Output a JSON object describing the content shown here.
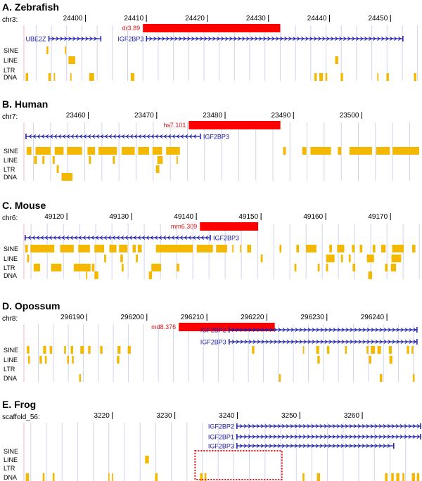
{
  "colors": {
    "element": "#ff0000",
    "element_label": "#e0161b",
    "gene": "#1a1aa8",
    "repeat": "#f5b800",
    "grid": "#d0d4ee",
    "scale_start": "#f2b8c6",
    "highlight": "#e0161b"
  },
  "track_labels": [
    "SINE",
    "LINE",
    "LTR",
    "DNA"
  ],
  "panels": [
    {
      "title": "A.  Zebrafish",
      "chrom": "chr3:",
      "ticks": [
        "24400",
        "24410",
        "24420",
        "24430",
        "24440",
        "24450"
      ],
      "tick_values": [
        24400,
        24410,
        24420,
        24430,
        24440,
        24450
      ],
      "view": [
        24390.5,
        24455.5
      ],
      "element": {
        "label": "dr3.89",
        "start": 24410,
        "end": 24432.5
      },
      "genes": [
        {
          "label": "UBE2Z",
          "start": 24394.6,
          "end": 24403.1,
          "strand": "+",
          "label_side": "left",
          "row": 0
        },
        {
          "label": "IGF2BP3",
          "start": 24410.6,
          "end": 24452.6,
          "strand": "+",
          "label_side": "left",
          "row": 0
        }
      ],
      "repeats": {
        "SINE": [
          [
            24394.2,
            24394.5
          ],
          [
            24397.2,
            24397.4
          ]
        ],
        "LINE": [
          [
            24397.8,
            24398.9
          ],
          [
            24441.5,
            24442.0
          ]
        ],
        "LTR": [],
        "DNA": [
          [
            24390.8,
            24391.2
          ],
          [
            24394.5,
            24394.9
          ],
          [
            24395.4,
            24395.6
          ],
          [
            24398.1,
            24398.3
          ],
          [
            24401.2,
            24402.0
          ],
          [
            24408.0,
            24408.6
          ],
          [
            24438.1,
            24438.5
          ],
          [
            24438.9,
            24439.5
          ],
          [
            24439.9,
            24440.2
          ],
          [
            24442.4,
            24442.8
          ],
          [
            24448.4,
            24448.6
          ],
          [
            24449.9,
            24450.3
          ],
          [
            24454.4,
            24454.8
          ]
        ]
      }
    },
    {
      "title": "B.  Human",
      "chrom": "chr7:",
      "ticks": [
        "23460",
        "23470",
        "23480",
        "23490",
        "23500"
      ],
      "tick_values": [
        23460,
        23470,
        23480,
        23490,
        23500
      ],
      "view": [
        23451.1,
        23509.1
      ],
      "element": {
        "label": "hs7.101",
        "start": 23475.2,
        "end": 23488.6
      },
      "genes": [
        {
          "label": "IGF2BP3",
          "start": 23451.4,
          "end": 23476.9,
          "strand": "-",
          "label_side": "right",
          "row": 0
        }
      ],
      "repeats": {
        "SINE": [
          [
            23451.5,
            23452.2
          ],
          [
            23452.8,
            23455.0
          ],
          [
            23455.6,
            23456.9
          ],
          [
            23457.4,
            23459.6
          ],
          [
            23460.4,
            23461.5
          ],
          [
            23462.0,
            23464.7
          ],
          [
            23465.4,
            23467.3
          ],
          [
            23467.8,
            23469.4
          ],
          [
            23469.9,
            23471.3
          ],
          [
            23471.9,
            23473.9
          ],
          [
            23489.0,
            23489.4
          ],
          [
            23491.8,
            23492.4
          ],
          [
            23493.0,
            23496.0
          ],
          [
            23497.0,
            23497.5
          ],
          [
            23498.7,
            23502.0
          ],
          [
            23502.6,
            23504.6
          ],
          [
            23505.0,
            23508.9
          ]
        ],
        "LINE": [
          [
            23452.6,
            23453.0
          ],
          [
            23453.8,
            23454.1
          ],
          [
            23455.3,
            23455.6
          ],
          [
            23460.6,
            23460.9
          ],
          [
            23464.1,
            23464.4
          ],
          [
            23470.6,
            23471.4
          ],
          [
            23473.4,
            23473.6
          ]
        ],
        "LTR": [
          [
            23455.9,
            23456.2
          ],
          [
            23470.4,
            23470.9
          ]
        ],
        "DNA": [
          [
            23456.6,
            23458.2
          ]
        ]
      }
    },
    {
      "title": "C.  Mouse",
      "chrom": "chr6:",
      "ticks": [
        "49120",
        "49130",
        "49140",
        "49150",
        "49160",
        "49170"
      ],
      "tick_values": [
        49120,
        49130,
        49140,
        49150,
        49160,
        49170
      ],
      "view": [
        49113.9,
        49175.2
      ],
      "element": {
        "label": "mm6.309",
        "start": 49141.1,
        "end": 49150.1
      },
      "genes": [
        {
          "label": "IGF2BP3",
          "start": 49114.1,
          "end": 49142.7,
          "strand": "-",
          "label_side": "right",
          "row": 0
        }
      ],
      "repeats": {
        "SINE": [
          [
            49114.1,
            49114.5
          ],
          [
            49114.9,
            49118.6
          ],
          [
            49119.5,
            49121.6
          ],
          [
            49122.3,
            49124.1
          ],
          [
            49124.8,
            49126.3
          ],
          [
            49127.1,
            49128.2
          ],
          [
            49128.6,
            49129.9
          ],
          [
            49130.7,
            49131.2
          ],
          [
            49131.5,
            49132.1
          ],
          [
            49134.3,
            49140.0
          ],
          [
            49140.6,
            49143.1
          ],
          [
            49143.6,
            49145.3
          ],
          [
            49146.1,
            49146.3
          ],
          [
            49147.3,
            49147.5
          ],
          [
            49148.4,
            49149.0
          ],
          [
            49153.4,
            49153.7
          ],
          [
            49156.0,
            49156.4
          ],
          [
            49157.5,
            49159.1
          ],
          [
            49161.1,
            49161.5
          ],
          [
            49162.3,
            49163.4
          ],
          [
            49164.6,
            49165.0
          ],
          [
            49165.8,
            49166.2
          ],
          [
            49167.8,
            49168.2
          ],
          [
            49169.1,
            49169.8
          ],
          [
            49170.8,
            49172.6
          ],
          [
            49173.9,
            49174.4
          ]
        ],
        "LINE": [
          [
            49114.4,
            49114.7
          ],
          [
            49126.3,
            49126.6
          ],
          [
            49128.8,
            49129.2
          ],
          [
            49131.2,
            49131.5
          ],
          [
            49150.5,
            49150.8
          ],
          [
            49160.6,
            49161.9
          ],
          [
            49162.9,
            49163.2
          ],
          [
            49164.1,
            49164.4
          ],
          [
            49166.9,
            49168.0
          ],
          [
            49170.7,
            49172.2
          ]
        ],
        "LTR": [
          [
            49115.4,
            49116.4
          ],
          [
            49118.1,
            49119.7
          ],
          [
            49121.6,
            49124.2
          ],
          [
            49124.4,
            49124.8
          ],
          [
            49129.0,
            49129.3
          ],
          [
            49133.6,
            49135.1
          ],
          [
            49137.5,
            49137.9
          ],
          [
            49155.7,
            49156.0
          ],
          [
            49159.3,
            49159.6
          ],
          [
            49160.6,
            49160.9
          ],
          [
            49164.7,
            49165.1
          ],
          [
            49169.7,
            49170.1
          ],
          [
            49170.6,
            49171.4
          ]
        ],
        "DNA": [
          [
            49123.5,
            49123.7
          ],
          [
            49124.8,
            49125.4
          ],
          [
            49133.2,
            49133.7
          ],
          [
            49167.1,
            49167.7
          ]
        ]
      }
    },
    {
      "title": "D.  Opossum",
      "chrom": "chr8:",
      "ticks": [
        "296190",
        "296200",
        "296210",
        "296220",
        "296230",
        "296240"
      ],
      "tick_values": [
        296190,
        296200,
        296210,
        296220,
        296230,
        296240
      ],
      "view": [
        296180.1,
        296246.2
      ],
      "element": {
        "label": "md8.376",
        "start": 296205.9,
        "end": 296221.9
      },
      "genes": [
        {
          "label": "IGF2BP2",
          "start": 296214.3,
          "end": 296245.6,
          "strand": "+",
          "label_side": "left",
          "row": 0
        },
        {
          "label": "IGF2BP3",
          "start": 296214.3,
          "end": 296245.6,
          "strand": "+",
          "label_side": "left",
          "row": 1
        }
      ],
      "repeats": {
        "SINE": [
          [
            296180.6,
            296181.0
          ],
          [
            296183.3,
            296183.8
          ],
          [
            296184.4,
            296184.8
          ],
          [
            296186.8,
            296187.1
          ],
          [
            296187.9,
            296188.3
          ],
          [
            296189.5,
            296190.1
          ],
          [
            296190.8,
            296191.2
          ],
          [
            296192.8,
            296193.2
          ],
          [
            296195.7,
            296196.2
          ],
          [
            296197.4,
            296197.9
          ],
          [
            296218.1,
            296218.5
          ],
          [
            296226.6,
            296226.8
          ],
          [
            296228.8,
            296229.3
          ],
          [
            296230.6,
            296231.0
          ],
          [
            296233.6,
            296233.9
          ],
          [
            296237.2,
            296237.5
          ],
          [
            296237.9,
            296238.6
          ],
          [
            296239.0,
            296239.6
          ],
          [
            296240.9,
            296241.4
          ],
          [
            296243.9,
            296244.3
          ],
          [
            296244.7,
            296245.0
          ]
        ],
        "LINE": [
          [
            296180.8,
            296181.1
          ],
          [
            296182.7,
            296183.1
          ],
          [
            296183.6,
            296183.9
          ],
          [
            296187.3,
            296187.6
          ],
          [
            296188.1,
            296188.4
          ],
          [
            296195.6,
            296196.0
          ],
          [
            296229.0,
            296229.4
          ],
          [
            296237.6,
            296238.0
          ],
          [
            296241.0,
            296241.5
          ]
        ],
        "LTR": [],
        "DNA": [
          [
            296189.3,
            296189.6
          ],
          [
            296222.6,
            296222.9
          ],
          [
            296239.4,
            296239.8
          ],
          [
            296244.9,
            296245.2
          ]
        ]
      }
    },
    {
      "title": "E.  Frog",
      "chrom": "scaffold_56:",
      "ticks": [
        "3220",
        "3230",
        "3240",
        "3250",
        "3260"
      ],
      "tick_values": [
        3220,
        3230,
        3240,
        3250,
        3260
      ],
      "view": [
        3206.4,
        3269.9
      ],
      "element": null,
      "genes": [
        {
          "label": "IGF2BP2",
          "start": 3240.5,
          "end": 3269.9,
          "strand": "+",
          "label_side": "left",
          "row": 0
        },
        {
          "label": "IGF2BP1",
          "start": 3240.5,
          "end": 3269.9,
          "strand": "+",
          "label_side": "left",
          "row": 1
        },
        {
          "label": "IGF2BP3",
          "start": 3240.5,
          "end": 3265.6,
          "strand": "+",
          "label_side": "left",
          "row": 2
        }
      ],
      "repeats": {
        "SINE": [],
        "LINE": [
          [
            3225.8,
            3226.4
          ]
        ],
        "LTR": [],
        "DNA": [
          [
            3206.7,
            3207.2
          ],
          [
            3209.4,
            3209.7
          ],
          [
            3211.0,
            3211.3
          ],
          [
            3219.9,
            3220.1
          ],
          [
            3220.5,
            3220.7
          ],
          [
            3227.4,
            3227.8
          ],
          [
            3234.6,
            3235.0
          ],
          [
            3235.3,
            3235.6
          ],
          [
            3251.0,
            3251.3
          ],
          [
            3253.3,
            3253.8
          ],
          [
            3264.2,
            3264.6
          ],
          [
            3265.2,
            3265.6
          ],
          [
            3266.0,
            3266.5
          ],
          [
            3267.0,
            3267.3
          ],
          [
            3268.5,
            3269.0
          ],
          [
            3269.3,
            3269.7
          ]
        ]
      },
      "highlight_region": {
        "start": 3233.8,
        "end": 3247.7
      }
    }
  ]
}
